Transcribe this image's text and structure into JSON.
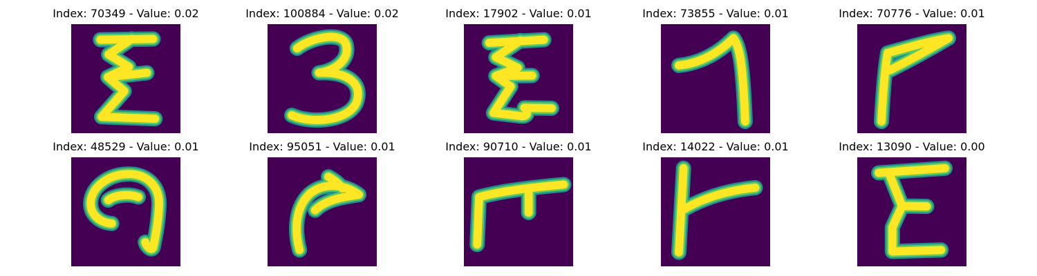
{
  "figure": {
    "background_color": "#440154",
    "stroke_colors": {
      "edge": "#21918c",
      "mid": "#5ec962",
      "core": "#fde725"
    },
    "panels": [
      {
        "title": "Index: 70349 - Value: 0.02",
        "glyph": "epsilon-glyph"
      },
      {
        "title": "Index: 100884 - Value: 0.02",
        "glyph": "digit-three-glyph"
      },
      {
        "title": "Index: 17902 - Value: 0.01",
        "glyph": "epsilon-glyph"
      },
      {
        "title": "Index: 73855 - Value: 0.01",
        "glyph": "digit-seven-glyph"
      },
      {
        "title": "Index: 70776 - Value: 0.01",
        "glyph": "digit-seven-glyph"
      },
      {
        "title": "Index: 48529 - Value: 0.01",
        "glyph": "hook-glyph"
      },
      {
        "title": "Index: 95051 - Value: 0.01",
        "glyph": "arrow-glyph"
      },
      {
        "title": "Index: 90710 - Value: 0.01",
        "glyph": "tee-glyph"
      },
      {
        "title": "Index: 14022 - Value: 0.01",
        "glyph": "tee-glyph"
      },
      {
        "title": "Index: 13090 - Value: 0.00",
        "glyph": "letter-e-glyph"
      }
    ]
  }
}
